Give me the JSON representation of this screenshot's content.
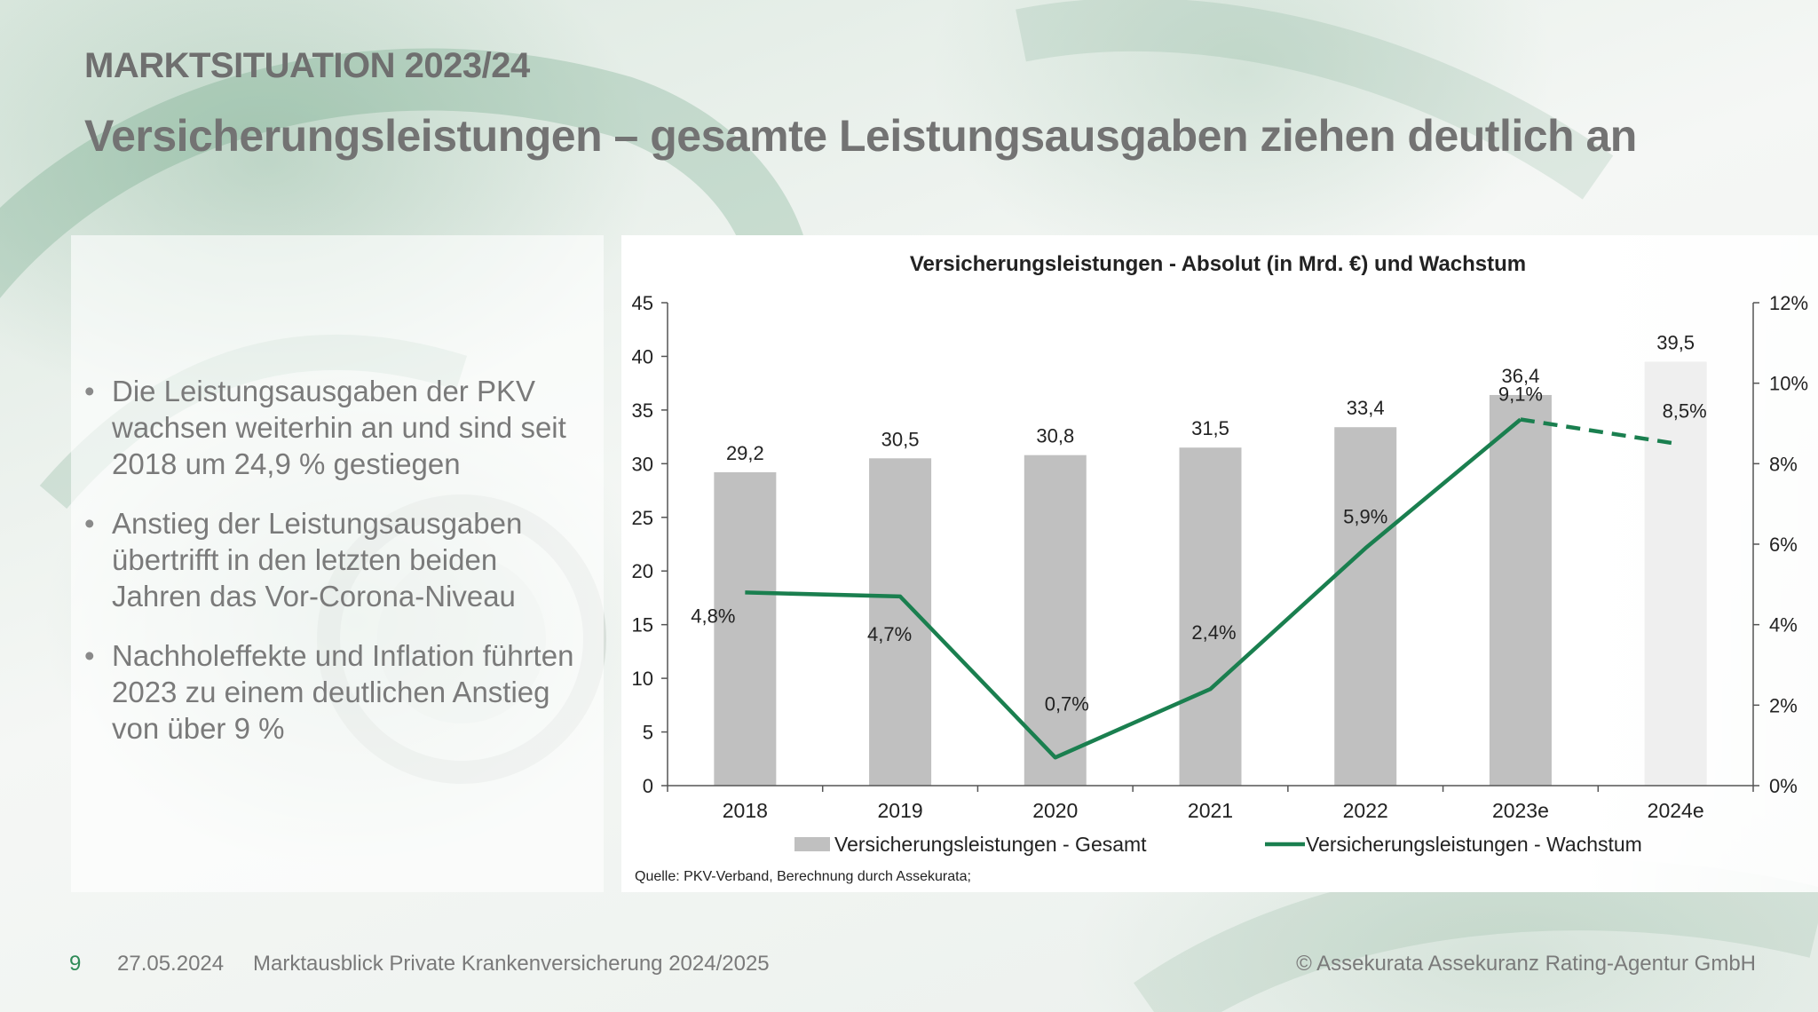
{
  "slide": {
    "kicker": "MARKTSITUATION 2023/24",
    "title": "Versicherungsleistungen – gesamte Leistungsausgaben ziehen deutlich an",
    "bullets": [
      "Die Leistungsausgaben der PKV wachsen weiterhin an und sind seit 2018 um 24,9 % gestiegen",
      "Anstieg der Leistungsausgaben übertrifft in den letzten beiden Jahren das Vor-Corona-Niveau",
      "Nachholeffekte und Inflation führten 2023 zu einem deutlichen Anstieg von über 9 %"
    ]
  },
  "footer": {
    "page": "9",
    "date": "27.05.2024",
    "document": "Marktausblick Private Krankenversicherung 2024/2025",
    "copyright": "© Assekurata Assekuranz Rating-Agentur GmbH"
  },
  "colors": {
    "bar": "#c0c0c0",
    "bar_estimate": "#efefef",
    "line": "#1a7f4f"
  },
  "chart_data": {
    "type": "bar",
    "title": "Versicherungsleistungen - Absolut (in Mrd. €) und Wachstum",
    "categories": [
      "2018",
      "2019",
      "2020",
      "2021",
      "2022",
      "2023e",
      "2024e"
    ],
    "series": [
      {
        "name": "Versicherungsleistungen - Gesamt",
        "type": "bar",
        "axis": "left",
        "values": [
          29.2,
          30.5,
          30.8,
          31.5,
          33.4,
          36.4,
          39.5
        ],
        "labels": [
          "29,2",
          "30,5",
          "30,8",
          "31,5",
          "33,4",
          "36,4",
          "39,5"
        ]
      },
      {
        "name": "Versicherungsleistungen - Wachstum",
        "type": "line",
        "axis": "right",
        "values": [
          4.8,
          4.7,
          0.7,
          2.4,
          5.9,
          9.1,
          8.5
        ],
        "labels": [
          "4,8%",
          "4,7%",
          "0,7%",
          "2,4%",
          "5,9%",
          "9,1%",
          "8,5%"
        ],
        "dashed_last_segment": true
      }
    ],
    "y_left": {
      "min": 0,
      "max": 45,
      "ticks": [
        "0",
        "5",
        "10",
        "15",
        "20",
        "25",
        "30",
        "35",
        "40",
        "45"
      ]
    },
    "y_right": {
      "min": 0,
      "max": 12,
      "ticks": [
        "0%",
        "2%",
        "4%",
        "6%",
        "8%",
        "10%",
        "12%"
      ]
    },
    "grid": false,
    "legend": "bottom",
    "source": "Quelle: PKV-Verband, Berechnung durch Assekurata;"
  }
}
